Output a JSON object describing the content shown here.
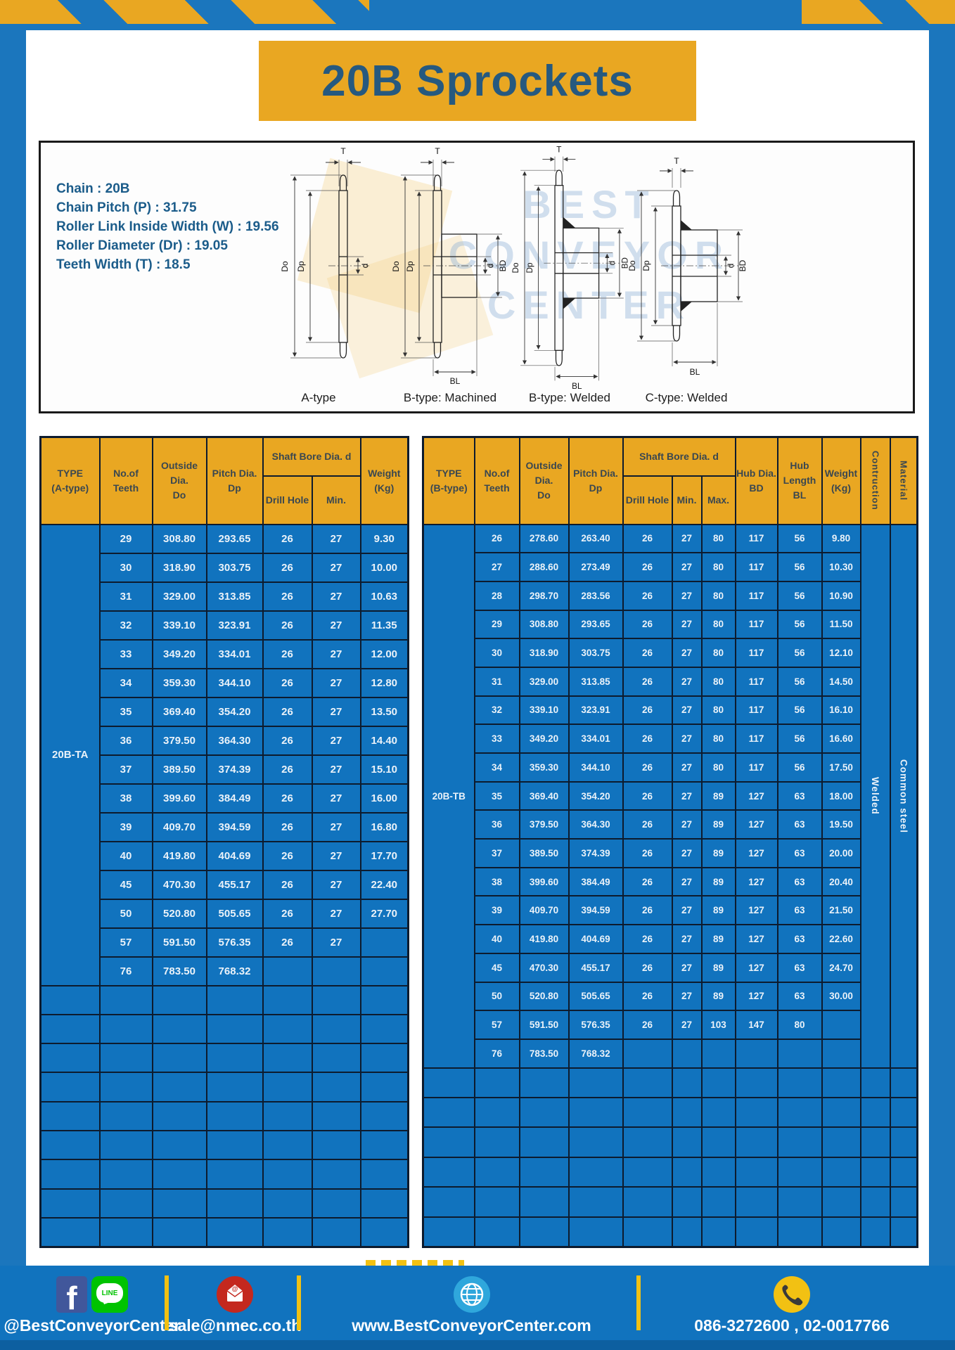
{
  "header": {
    "title": "20B Sprockets"
  },
  "colors": {
    "accent_yellow": "#E9A722",
    "table_blue": "#1173BE",
    "frame_blue": "#1B76BD",
    "border_navy": "#0D1B2E",
    "title_text_blue": "#26597F",
    "footer_blue": "#1173BE"
  },
  "diagram": {
    "specs": "Chain  : 20B\nChain Pitch (P)  :  31.75\nRoller Link Inside Width (W)  :  19.56\nRoller Diameter (Dr)  : 19.05\nTeeth Width (T)  :  18.5",
    "watermark": "BEST\nCONVEYOR\nCENTER",
    "captions": {
      "a": "A-type",
      "b_machined": "B-type: Machined",
      "b_welded": "B-type: Welded",
      "c_welded": "C-type: Welded"
    },
    "dim_labels": {
      "T": "T",
      "Do": "Do",
      "Dp": "Dp",
      "d": "d",
      "BD": "BD",
      "BL": "BL"
    }
  },
  "table_a": {
    "type_label": "20B-TA",
    "headers": {
      "type": "TYPE\n(A-type)",
      "teeth": "No.of\nTeeth",
      "outside": "Outside\nDia.\nDo",
      "pitch": "Pitch Dia.\nDp",
      "shaft_bore": "Shaft Bore Dia. d",
      "drill": "Drill Hole",
      "min": "Min.",
      "weight": "Weight\n(Kg)"
    },
    "rows": [
      [
        "29",
        "308.80",
        "293.65",
        "26",
        "27",
        "9.30"
      ],
      [
        "30",
        "318.90",
        "303.75",
        "26",
        "27",
        "10.00"
      ],
      [
        "31",
        "329.00",
        "313.85",
        "26",
        "27",
        "10.63"
      ],
      [
        "32",
        "339.10",
        "323.91",
        "26",
        "27",
        "11.35"
      ],
      [
        "33",
        "349.20",
        "334.01",
        "26",
        "27",
        "12.00"
      ],
      [
        "34",
        "359.30",
        "344.10",
        "26",
        "27",
        "12.80"
      ],
      [
        "35",
        "369.40",
        "354.20",
        "26",
        "27",
        "13.50"
      ],
      [
        "36",
        "379.50",
        "364.30",
        "26",
        "27",
        "14.40"
      ],
      [
        "37",
        "389.50",
        "374.39",
        "26",
        "27",
        "15.10"
      ],
      [
        "38",
        "399.60",
        "384.49",
        "26",
        "27",
        "16.00"
      ],
      [
        "39",
        "409.70",
        "394.59",
        "26",
        "27",
        "16.80"
      ],
      [
        "40",
        "419.80",
        "404.69",
        "26",
        "27",
        "17.70"
      ],
      [
        "45",
        "470.30",
        "455.17",
        "26",
        "27",
        "22.40"
      ],
      [
        "50",
        "520.80",
        "505.65",
        "26",
        "27",
        "27.70"
      ],
      [
        "57",
        "591.50",
        "576.35",
        "26",
        "27",
        ""
      ],
      [
        "76",
        "783.50",
        "768.32",
        "",
        "",
        ""
      ]
    ],
    "empty_rows": 9
  },
  "table_b": {
    "type_label": "20B-TB",
    "construction": "Welded",
    "material": "Common steel",
    "headers": {
      "type": "TYPE\n(B-type)",
      "teeth": "No.of\nTeeth",
      "outside": "Outside\nDia.\nDo",
      "pitch": "Pitch Dia.\nDp",
      "shaft_bore": "Shaft Bore Dia. d",
      "drill": "Drill Hole",
      "min": "Min.",
      "max": "Max.",
      "hub_dia": "Hub Dia.\nBD",
      "hub_len": "Hub\nLength\nBL",
      "weight": "Weight\n(Kg)",
      "construction": "Contruction",
      "material": "Material"
    },
    "rows": [
      [
        "26",
        "278.60",
        "263.40",
        "26",
        "27",
        "80",
        "117",
        "56",
        "9.80"
      ],
      [
        "27",
        "288.60",
        "273.49",
        "26",
        "27",
        "80",
        "117",
        "56",
        "10.30"
      ],
      [
        "28",
        "298.70",
        "283.56",
        "26",
        "27",
        "80",
        "117",
        "56",
        "10.90"
      ],
      [
        "29",
        "308.80",
        "293.65",
        "26",
        "27",
        "80",
        "117",
        "56",
        "11.50"
      ],
      [
        "30",
        "318.90",
        "303.75",
        "26",
        "27",
        "80",
        "117",
        "56",
        "12.10"
      ],
      [
        "31",
        "329.00",
        "313.85",
        "26",
        "27",
        "80",
        "117",
        "56",
        "14.50"
      ],
      [
        "32",
        "339.10",
        "323.91",
        "26",
        "27",
        "80",
        "117",
        "56",
        "16.10"
      ],
      [
        "33",
        "349.20",
        "334.01",
        "26",
        "27",
        "80",
        "117",
        "56",
        "16.60"
      ],
      [
        "34",
        "359.30",
        "344.10",
        "26",
        "27",
        "80",
        "117",
        "56",
        "17.50"
      ],
      [
        "35",
        "369.40",
        "354.20",
        "26",
        "27",
        "89",
        "127",
        "63",
        "18.00"
      ],
      [
        "36",
        "379.50",
        "364.30",
        "26",
        "27",
        "89",
        "127",
        "63",
        "19.50"
      ],
      [
        "37",
        "389.50",
        "374.39",
        "26",
        "27",
        "89",
        "127",
        "63",
        "20.00"
      ],
      [
        "38",
        "399.60",
        "384.49",
        "26",
        "27",
        "89",
        "127",
        "63",
        "20.40"
      ],
      [
        "39",
        "409.70",
        "394.59",
        "26",
        "27",
        "89",
        "127",
        "63",
        "21.50"
      ],
      [
        "40",
        "419.80",
        "404.69",
        "26",
        "27",
        "89",
        "127",
        "63",
        "22.60"
      ],
      [
        "45",
        "470.30",
        "455.17",
        "26",
        "27",
        "89",
        "127",
        "63",
        "24.70"
      ],
      [
        "50",
        "520.80",
        "505.65",
        "26",
        "27",
        "89",
        "127",
        "63",
        "30.00"
      ],
      [
        "57",
        "591.50",
        "576.35",
        "26",
        "27",
        "103",
        "147",
        "80",
        ""
      ],
      [
        "76",
        "783.50",
        "768.32",
        "",
        "",
        "",
        "",
        "",
        ""
      ]
    ],
    "empty_rows": 6
  },
  "footer": {
    "social_text": "@BestConveyorCenter",
    "line_label": "LINE",
    "facebook_letter": "f",
    "email": "sale@nmec.co.th",
    "website": "www.BestConveyorCenter.com",
    "phone": "086-3272600 , 02-0017766",
    "icons": [
      "facebook-icon",
      "line-icon",
      "email-icon",
      "globe-icon",
      "phone-icon"
    ]
  }
}
